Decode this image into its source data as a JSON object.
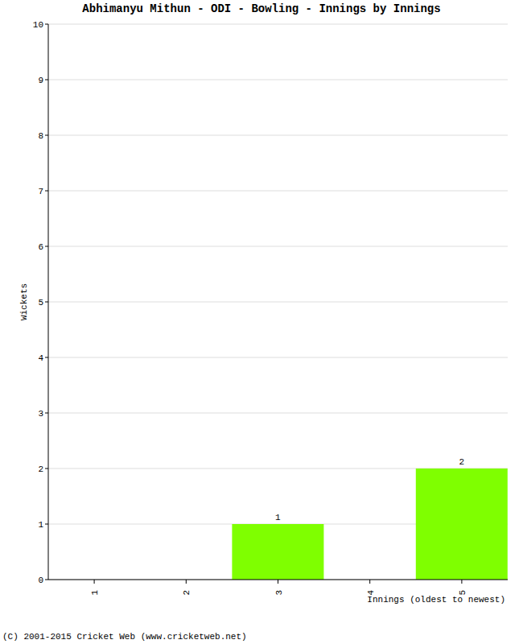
{
  "chart_data": {
    "type": "bar",
    "title": "Abhimanyu Mithun - ODI - Bowling - Innings by Innings",
    "x_label": "Innings (oldest to newest)",
    "y_label": "Wickets",
    "annotations": [
      "(C) 2001-2015 Cricket Web (www.cricketweb.net)"
    ],
    "categories": [
      "1",
      "2",
      "3",
      "4",
      "5"
    ],
    "values": [
      0,
      0,
      1,
      0,
      2
    ],
    "color": "#7fff00",
    "ylim": [
      0,
      10
    ],
    "yticks": [
      0,
      1,
      2,
      3,
      4,
      5,
      6,
      7,
      8,
      9,
      10
    ],
    "grid": true,
    "data_labels": true
  }
}
